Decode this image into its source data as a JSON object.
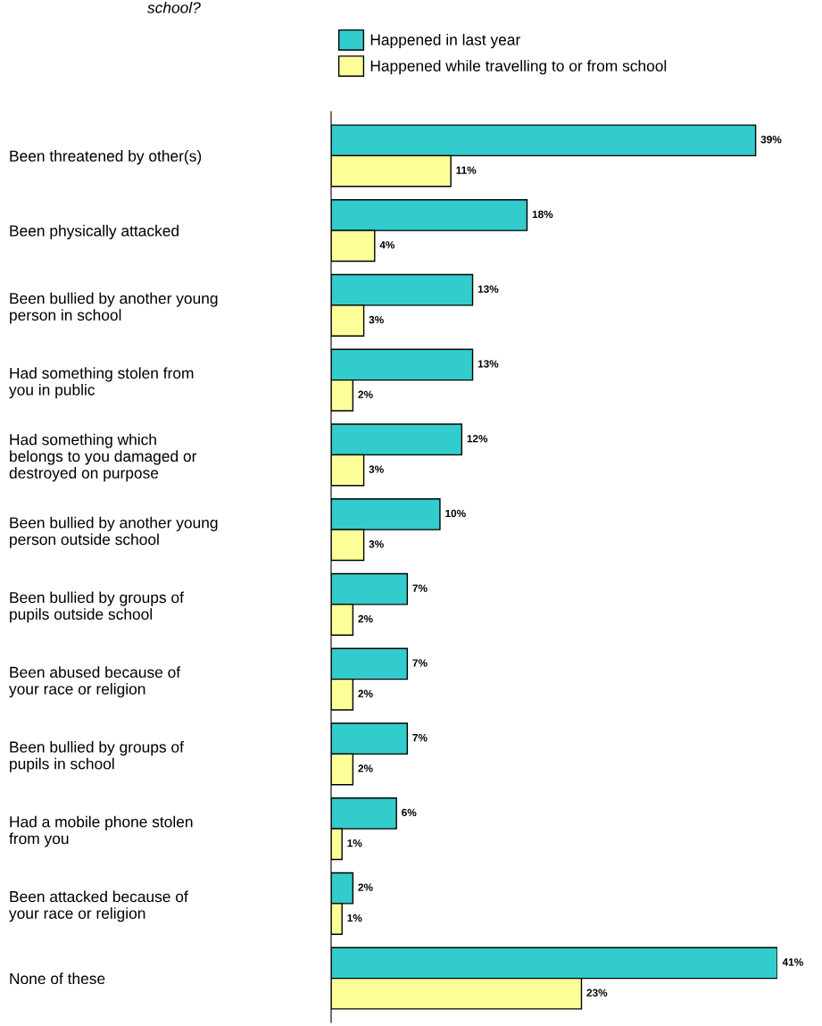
{
  "chart_data": {
    "type": "bar",
    "orientation": "horizontal",
    "title": "school?",
    "categories": [
      "Been threatened by other(s)",
      "Been physically attacked",
      "Been bullied by another young\nperson in school",
      "Had something stolen from\nyou in public",
      "Had something which\nbelongs to you damaged or\ndestroyed on purpose",
      "Been bullied by another young\nperson outside school",
      "Been bullied by groups of\npupils outside school",
      "Been abused because of\nyour race or religion",
      "Been bullied by groups of\npupils in school",
      "Had a mobile phone stolen\nfrom you",
      "Been attacked because of\nyour race or religion",
      "None of these"
    ],
    "series": [
      {
        "name": "Happened in last year",
        "color": "#33cccc",
        "values": [
          39,
          18,
          13,
          13,
          12,
          10,
          7,
          7,
          7,
          6,
          2,
          41
        ],
        "value_labels": [
          "39%",
          "18%",
          "13%",
          "13%",
          "12%",
          "10%",
          "7%",
          "7%",
          "7%",
          "6%",
          "2%",
          "41%"
        ]
      },
      {
        "name": "Happened while travelling to or from school",
        "color": "#ffff99",
        "values": [
          11,
          4,
          3,
          2,
          3,
          3,
          2,
          2,
          2,
          1,
          1,
          23
        ],
        "value_labels": [
          "11%",
          "4%",
          "3%",
          "2%",
          "3%",
          "3%",
          "2%",
          "2%",
          "2%",
          "1%",
          "1%",
          "23%"
        ]
      }
    ],
    "legend": "top",
    "grid": false
  }
}
